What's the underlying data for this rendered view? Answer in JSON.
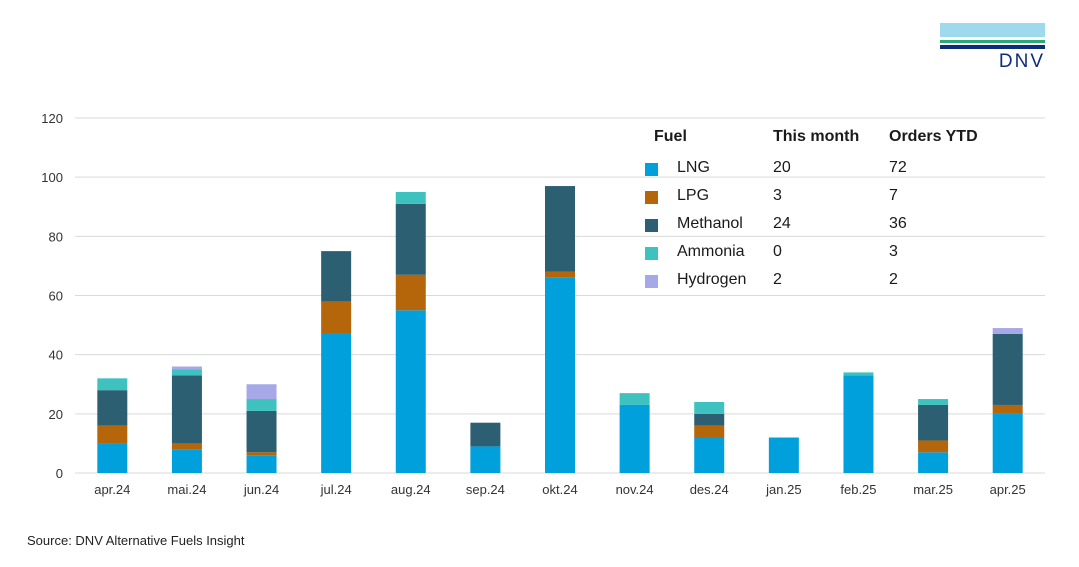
{
  "logo": {
    "text": "DNV"
  },
  "source": "Source: DNV Alternative Fuels Insight",
  "colors": {
    "LNG": "#00a0dc",
    "LPG": "#b5650a",
    "Methanol": "#2d5f73",
    "Ammonia": "#3ec2c0",
    "Hydrogen": "#a6a8e8",
    "grid": "#d9d9d9",
    "axis_text": "#333333"
  },
  "legend": {
    "headers": {
      "fuel": "Fuel",
      "month": "This month",
      "ytd": "Orders YTD"
    },
    "rows": [
      {
        "fuel": "LNG",
        "month": "20",
        "ytd": "72",
        "color": "#00a0dc"
      },
      {
        "fuel": "LPG",
        "month": "3",
        "ytd": "7",
        "color": "#b5650a"
      },
      {
        "fuel": "Methanol",
        "month": "24",
        "ytd": "36",
        "color": "#2d5f73"
      },
      {
        "fuel": "Ammonia",
        "month": "0",
        "ytd": "3",
        "color": "#3ec2c0"
      },
      {
        "fuel": "Hydrogen",
        "month": "2",
        "ytd": "2",
        "color": "#a6a8e8"
      }
    ]
  },
  "chart_data": {
    "type": "bar",
    "stacked": true,
    "title": "",
    "xlabel": "",
    "ylabel": "",
    "ylim": [
      0,
      120
    ],
    "yticks": [
      0,
      20,
      40,
      60,
      80,
      100,
      120
    ],
    "grid": true,
    "legend_position": "top-right",
    "categories": [
      "apr.24",
      "mai.24",
      "jun.24",
      "jul.24",
      "aug.24",
      "sep.24",
      "okt.24",
      "nov.24",
      "des.24",
      "jan.25",
      "feb.25",
      "mar.25",
      "apr.25"
    ],
    "series": [
      {
        "name": "LNG",
        "color": "#00a0dc",
        "values": [
          10,
          8,
          6,
          47,
          55,
          9,
          66,
          23,
          12,
          12,
          33,
          7,
          20
        ]
      },
      {
        "name": "LPG",
        "color": "#b5650a",
        "values": [
          6,
          2,
          1,
          11,
          12,
          0,
          2,
          0,
          4,
          0,
          0,
          4,
          3
        ]
      },
      {
        "name": "Methanol",
        "color": "#2d5f73",
        "values": [
          12,
          23,
          14,
          17,
          24,
          8,
          29,
          0,
          4,
          0,
          0,
          12,
          24
        ]
      },
      {
        "name": "Ammonia",
        "color": "#3ec2c0",
        "values": [
          4,
          2,
          4,
          0,
          4,
          0,
          0,
          4,
          4,
          0,
          1,
          2,
          0
        ]
      },
      {
        "name": "Hydrogen",
        "color": "#a6a8e8",
        "values": [
          0,
          1,
          5,
          0,
          0,
          0,
          0,
          0,
          0,
          0,
          0,
          0,
          2
        ]
      }
    ]
  }
}
